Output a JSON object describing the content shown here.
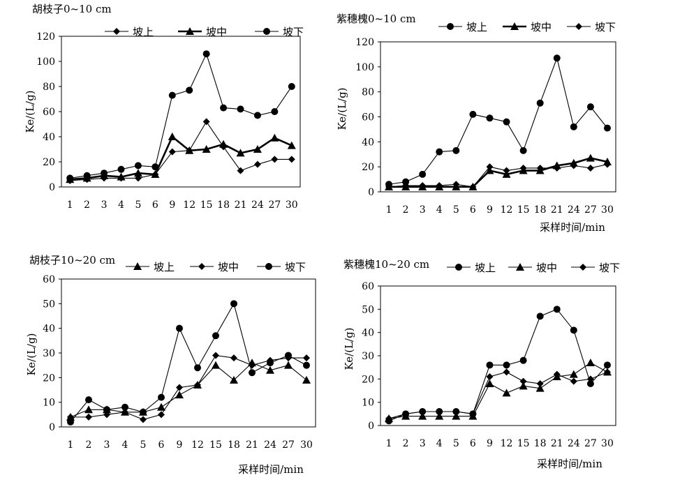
{
  "chart_data": [
    {
      "type": "line",
      "title": "胡枝子0~10 cm",
      "xlabel": "",
      "ylabel": "Ke/(L/g)",
      "ylim": [
        0,
        120
      ],
      "yticks": [
        0,
        20,
        40,
        60,
        80,
        100,
        120
      ],
      "grid": false,
      "legend_position": "top",
      "categories": [
        "1",
        "2",
        "3",
        "4",
        "5",
        "6",
        "9",
        "12",
        "15",
        "18",
        "21",
        "24",
        "27",
        "30"
      ],
      "series": [
        {
          "name": "坡上",
          "marker": "diamond",
          "line": "thin",
          "values": [
            5,
            6,
            7,
            7,
            7,
            10,
            28,
            29,
            52,
            32,
            13,
            18,
            22,
            22
          ]
        },
        {
          "name": "坡中",
          "marker": "triangle",
          "line": "thick",
          "values": [
            6,
            7,
            9,
            8,
            11,
            10,
            40,
            29,
            30,
            34,
            27,
            30,
            39,
            33
          ]
        },
        {
          "name": "坡下",
          "marker": "circle",
          "line": "thin",
          "values": [
            7,
            9,
            11,
            14,
            17,
            16,
            73,
            77,
            106,
            63,
            62,
            57,
            60,
            80
          ]
        }
      ]
    },
    {
      "type": "line",
      "title": "紫穗槐0~10 cm",
      "xlabel": "采样时间/min",
      "ylabel": "Ke/(L/g)",
      "ylim": [
        0,
        120
      ],
      "yticks": [
        0,
        20,
        40,
        60,
        80,
        100,
        120
      ],
      "grid": false,
      "legend_position": "top",
      "categories": [
        "1",
        "2",
        "3",
        "4",
        "5",
        "6",
        "9",
        "12",
        "15",
        "18",
        "21",
        "24",
        "27",
        "30"
      ],
      "series": [
        {
          "name": "坡上",
          "marker": "circle",
          "line": "thin",
          "values": [
            6,
            8,
            14,
            32,
            33,
            62,
            59,
            56,
            33,
            71,
            107,
            52,
            68,
            51
          ]
        },
        {
          "name": "坡中",
          "marker": "triangle",
          "line": "thick",
          "values": [
            4,
            4,
            4,
            4,
            4,
            4,
            17,
            14,
            17,
            17,
            21,
            23,
            27,
            24
          ]
        },
        {
          "name": "坡下",
          "marker": "diamond",
          "line": "thin",
          "values": [
            4,
            5,
            5,
            5,
            6,
            4,
            20,
            17,
            19,
            19,
            19,
            21,
            19,
            22
          ]
        }
      ]
    },
    {
      "type": "line",
      "title": "胡枝子10~20 cm",
      "xlabel": "采样时间/min",
      "ylabel": "Ke/(L/g)",
      "ylim": [
        0,
        60
      ],
      "yticks": [
        0,
        10,
        20,
        30,
        40,
        50,
        60
      ],
      "grid": false,
      "legend_position": "top",
      "categories": [
        "1",
        "2",
        "3",
        "4",
        "5",
        "6",
        "9",
        "12",
        "15",
        "18",
        "21",
        "24",
        "27",
        "30"
      ],
      "series": [
        {
          "name": "坡上",
          "marker": "triangle",
          "line": "thin",
          "values": [
            4,
            7,
            7,
            6,
            6,
            8,
            13,
            17,
            25,
            19,
            26,
            23,
            25,
            19
          ]
        },
        {
          "name": "坡中",
          "marker": "diamond",
          "line": "thin",
          "values": [
            4,
            4,
            5,
            6,
            3,
            5,
            16,
            17,
            29,
            28,
            25,
            27,
            28,
            28
          ]
        },
        {
          "name": "坡下",
          "marker": "circle",
          "line": "thin",
          "values": [
            2,
            11,
            7,
            8,
            6,
            12,
            40,
            24,
            37,
            50,
            22,
            26,
            29,
            25
          ]
        }
      ]
    },
    {
      "type": "line",
      "title": "紫穗槐10~20 cm",
      "xlabel": "采样时间/min",
      "ylabel": "Ke/(L/g)",
      "ylim": [
        0,
        60
      ],
      "yticks": [
        0,
        10,
        20,
        30,
        40,
        50,
        60
      ],
      "grid": false,
      "legend_position": "top",
      "categories": [
        "1",
        "2",
        "3",
        "4",
        "5",
        "6",
        "9",
        "12",
        "15",
        "18",
        "21",
        "24",
        "27",
        "30"
      ],
      "series": [
        {
          "name": "坡上",
          "marker": "circle",
          "line": "thin",
          "values": [
            2,
            5,
            6,
            6,
            6,
            5,
            26,
            26,
            28,
            47,
            50,
            41,
            18,
            26
          ]
        },
        {
          "name": "坡中",
          "marker": "triangle",
          "line": "thin",
          "values": [
            3,
            4,
            4,
            4,
            4,
            4,
            18,
            14,
            17,
            16,
            21,
            22,
            27,
            23
          ]
        },
        {
          "name": "坡下",
          "marker": "diamond",
          "line": "thin",
          "values": [
            3,
            5,
            6,
            6,
            6,
            5,
            21,
            23,
            19,
            18,
            22,
            19,
            20,
            23
          ]
        }
      ]
    }
  ]
}
